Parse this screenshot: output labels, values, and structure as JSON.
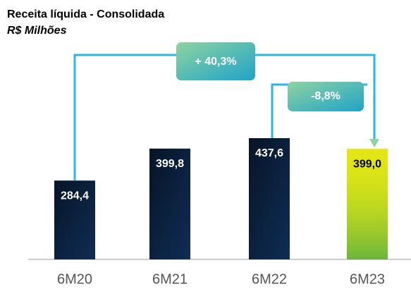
{
  "chart_data": {
    "type": "bar",
    "title": "Receita líquida - Consolidada",
    "subtitle": "R$ Milhões",
    "categories": [
      "6M20",
      "6M21",
      "6M22",
      "6M23"
    ],
    "values": [
      284.4,
      399.8,
      437.6,
      399.0
    ],
    "value_labels": [
      "284,4",
      "399,8",
      "437,6",
      "399,0"
    ],
    "colors": [
      "#0f2d55",
      "#0f2d55",
      "#0f2d55",
      "#d9dc1c"
    ],
    "value_label_colors": [
      "#ffffff",
      "#ffffff",
      "#ffffff",
      "#000000"
    ],
    "annotations": [
      "+ 40,3%",
      "-8,8%"
    ]
  }
}
